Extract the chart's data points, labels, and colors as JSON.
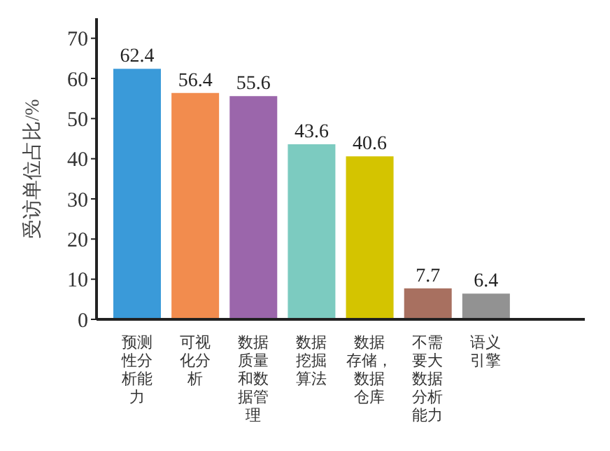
{
  "chart_data": {
    "type": "bar",
    "ylabel": "受访单位占比/%",
    "categories": [
      "预测性分析能力",
      "可视化分析",
      "数据质量和数据管理",
      "数据挖掘算法",
      "数据存储，数据仓库",
      "不需要大数据分析能力",
      "语义引擎"
    ],
    "values": [
      62.4,
      56.4,
      55.6,
      43.6,
      40.6,
      7.7,
      6.4
    ],
    "colors": [
      "#3a9ad9",
      "#f28c4e",
      "#9b66ab",
      "#7ccbc0",
      "#d4c400",
      "#a87060",
      "#929292"
    ],
    "ylim": [
      0,
      75
    ],
    "yticks": [
      0,
      10,
      20,
      30,
      40,
      50,
      60,
      70
    ],
    "grid": false,
    "legend": false,
    "data_labels": true
  }
}
